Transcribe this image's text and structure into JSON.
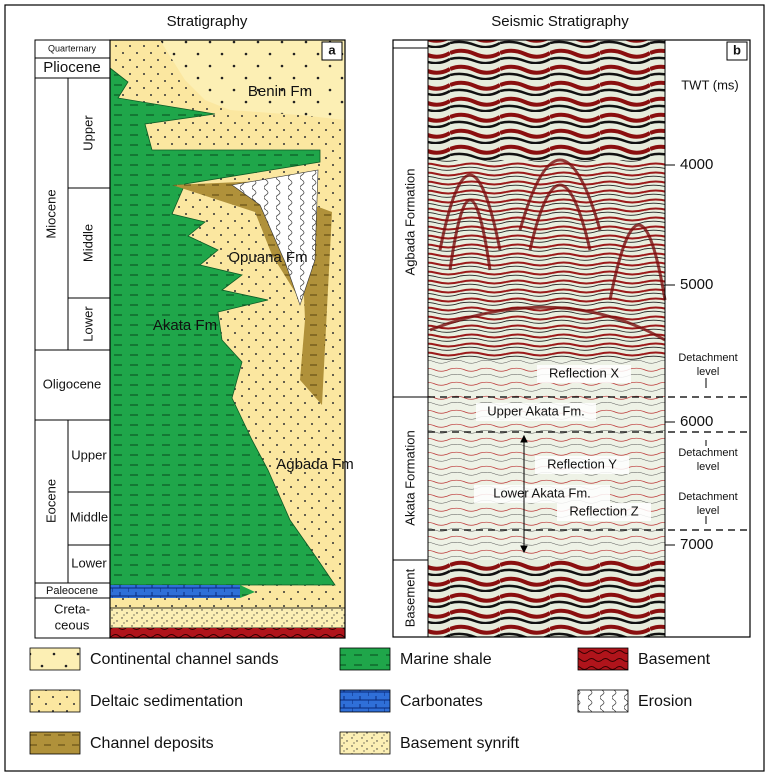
{
  "panel_a": {
    "title": "Stratigraphy",
    "label": "a",
    "ages": [
      "Quarternary",
      "Pliocene",
      "Miocene",
      "Upper",
      "Middle",
      "Lower",
      "Oligocene",
      "Eocene",
      "Upper",
      "Middle",
      "Lower",
      "Paleocene"
    ],
    "cretaceous_lines": [
      "Creta-",
      "ceous"
    ],
    "formations": [
      "Benin Fm",
      "Opuana Fm",
      "Akata Fm",
      "Agbada Fm"
    ]
  },
  "panel_b": {
    "title": "Seismic Stratigraphy",
    "label": "b",
    "units": [
      "Agbada Formation",
      "Akata Formation",
      "Basement"
    ],
    "axis_label": "TWT (ms)",
    "ticks": [
      4000,
      5000,
      6000,
      7000
    ],
    "annotations": [
      "Reflection X",
      "Upper Akata Fm.",
      "Reflection Y",
      "Lower Akata Fm.",
      "Reflection Z"
    ],
    "detachment_lines": [
      "Detachment",
      "level"
    ]
  },
  "legend": [
    "Continental channel sands",
    "Marine shale",
    "Basement",
    "Deltaic sedimentation",
    "Carbonates",
    "Erosion",
    "Channel deposits",
    "Basement synrift"
  ]
}
